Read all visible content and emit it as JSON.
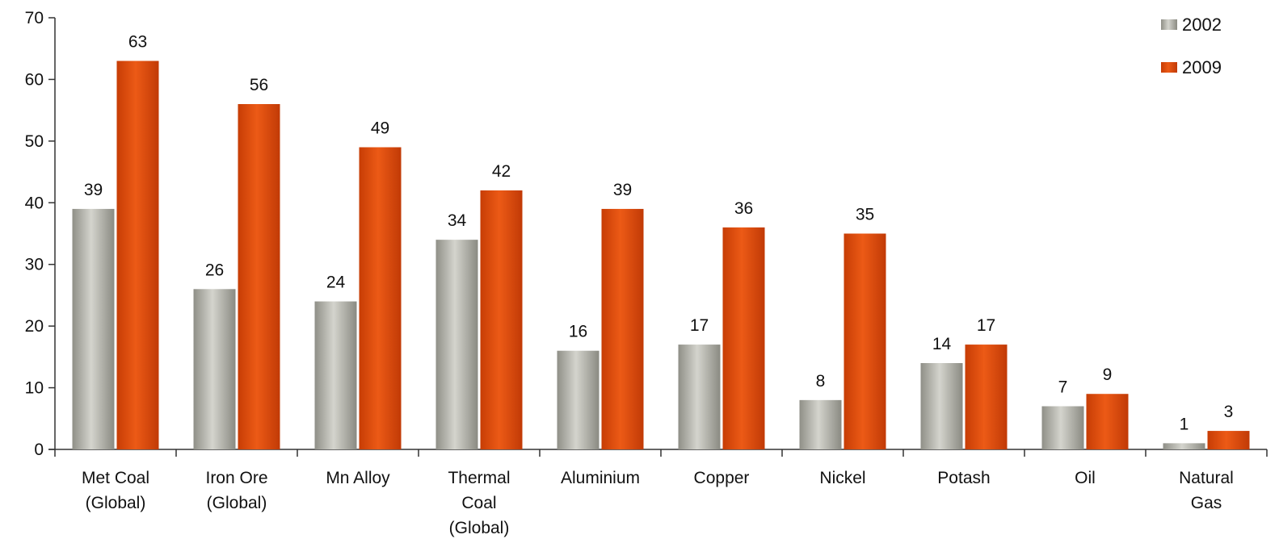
{
  "chart_data": {
    "type": "bar",
    "title": "",
    "xlabel": "",
    "ylabel": "",
    "ylim": [
      0,
      70
    ],
    "yticks": [
      0,
      10,
      20,
      30,
      40,
      50,
      60,
      70
    ],
    "grid": false,
    "legend_position": "top-right",
    "categories": [
      [
        "Met Coal",
        "(Global)"
      ],
      [
        "Iron Ore",
        "(Global)"
      ],
      [
        "Mn Alloy"
      ],
      [
        "Thermal",
        "Coal",
        "(Global)"
      ],
      [
        "Aluminium"
      ],
      [
        "Copper"
      ],
      [
        "Nickel"
      ],
      [
        "Potash"
      ],
      [
        "Oil"
      ],
      [
        "Natural",
        "Gas"
      ]
    ],
    "series": [
      {
        "name": "2002",
        "color": "#a3a39b",
        "values": [
          39,
          26,
          24,
          34,
          16,
          17,
          8,
          14,
          7,
          1
        ]
      },
      {
        "name": "2009",
        "color": "#de4a0c",
        "values": [
          63,
          56,
          49,
          42,
          39,
          36,
          35,
          17,
          9,
          3
        ]
      }
    ]
  }
}
